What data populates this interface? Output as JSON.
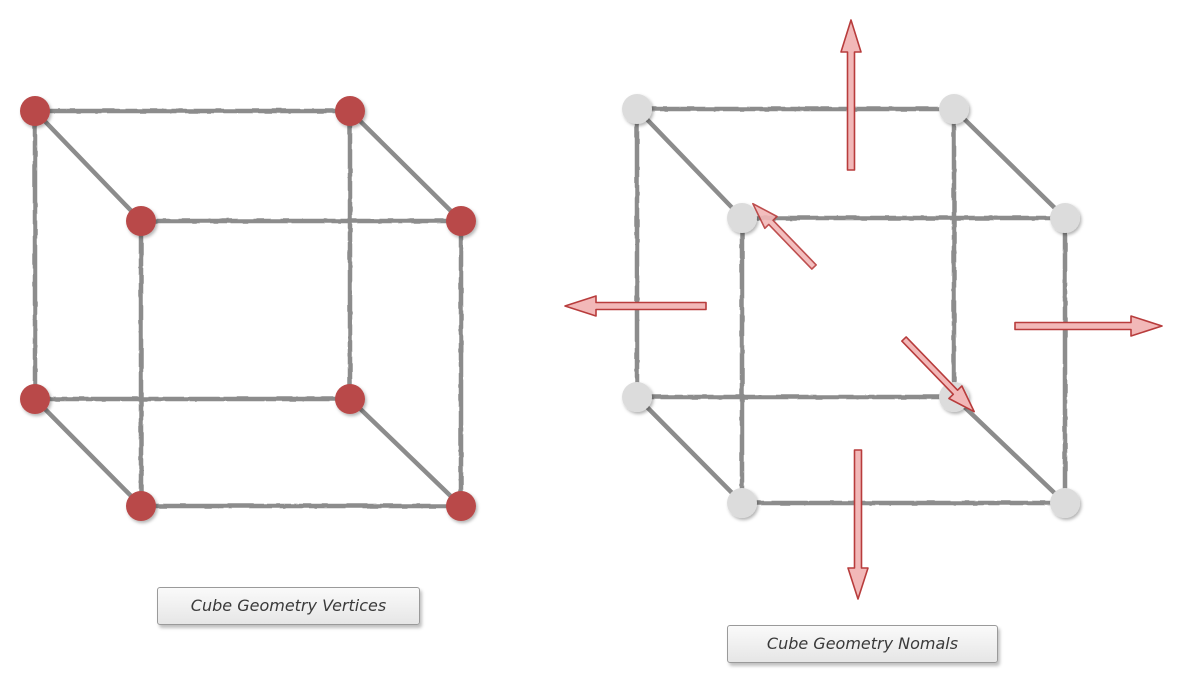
{
  "captions": {
    "vertices": "Cube Geometry Vertices",
    "normals": "Cube Geometry Nomals"
  },
  "colors": {
    "edge": "#8c8c8c",
    "vertex_highlighted": "#b94a48",
    "vertex_plain": "#dcdcdc",
    "arrow_fill": "#f2b8b8",
    "arrow_stroke": "#b83c3c"
  },
  "icons": {
    "vertex": "filled-circle",
    "normal": "arrow"
  }
}
